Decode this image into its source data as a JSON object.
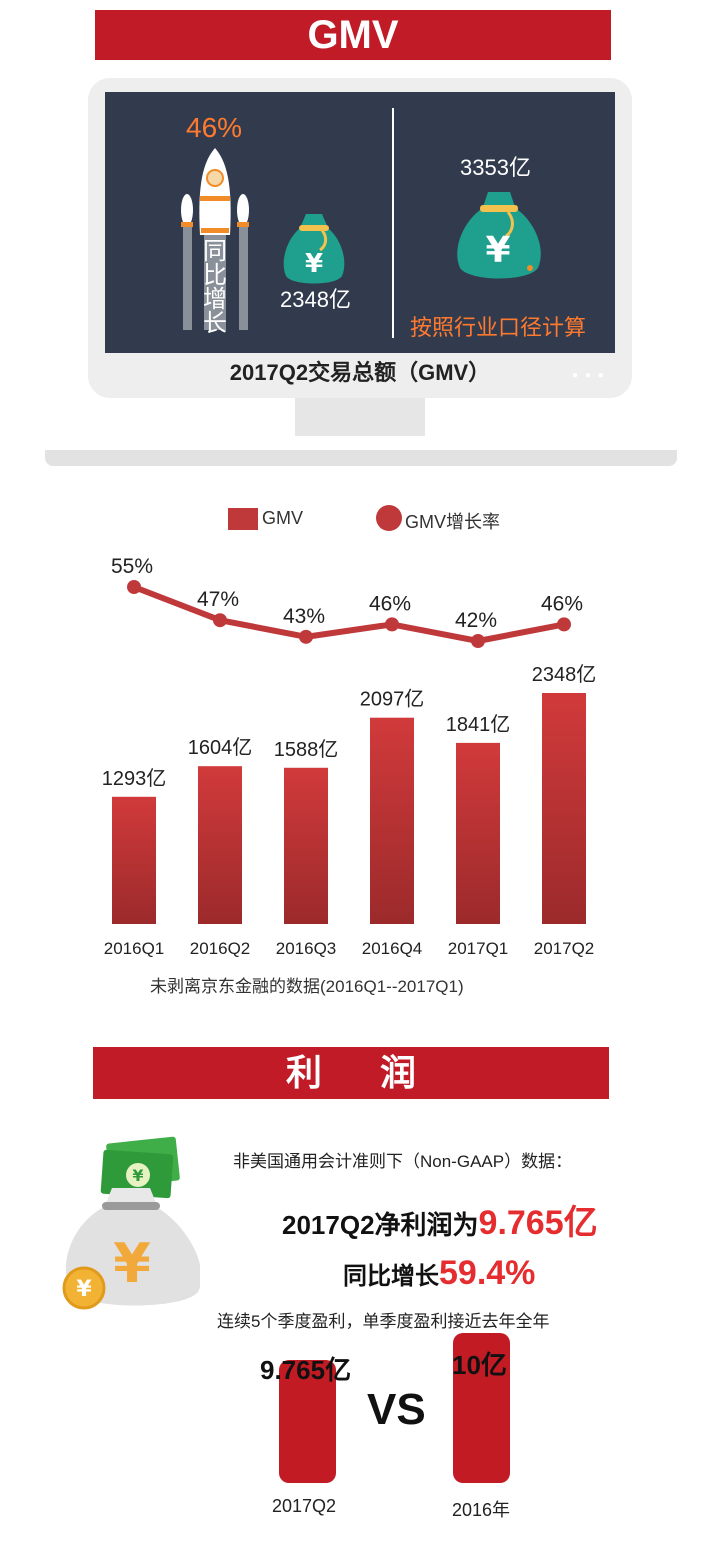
{
  "gmv_section": {
    "title": "GMV",
    "rocket_percent": "46%",
    "rocket_label": "同比增长",
    "small_bag_value": "2348亿",
    "big_bag_value": "3353亿",
    "industry_caliber": "按照行业口径计算",
    "caption": "2017Q2交易总额（GMV）",
    "bag_symbol": "¥"
  },
  "legend": {
    "bar": "GMV",
    "line": "GMV增长率"
  },
  "chart_data": {
    "type": "bar",
    "categories": [
      "2016Q1",
      "2016Q2",
      "2016Q3",
      "2016Q4",
      "2017Q1",
      "2017Q2"
    ],
    "series": [
      {
        "name": "GMV",
        "type": "bar",
        "values": [
          1293,
          1604,
          1588,
          2097,
          1841,
          2348
        ],
        "labels": [
          "1293亿",
          "1604亿",
          "1588亿",
          "2097亿",
          "1841亿",
          "2348亿"
        ]
      },
      {
        "name": "GMV增长率",
        "type": "line",
        "values": [
          55,
          47,
          43,
          46,
          42,
          46
        ],
        "labels": [
          "55%",
          "47%",
          "43%",
          "46%",
          "42%",
          "46%"
        ]
      }
    ],
    "colors": {
      "bar_top": "#d13a3b",
      "bar_bottom": "#9c2a2b",
      "line": "#c0393a"
    }
  },
  "chart_note": "未剥离京东金融的数据(2016Q1--2017Q1)",
  "profit_section": {
    "title": "利 润",
    "nongaap_text": "非美国通用会计准则下（Non-GAAP）数据：",
    "net_profit_prefix": "2017Q2净利润为",
    "net_profit_value": "9.765亿",
    "yoy_prefix": "同比增长",
    "yoy_value": "59.4%",
    "consecutive_text": "连续5个季度盈利，单季度盈利接近去年全年",
    "compare": {
      "left_value": "9.765亿",
      "left_label": "2017Q2",
      "right_value": "10亿",
      "right_label": "2016年",
      "vs": "VS"
    }
  }
}
